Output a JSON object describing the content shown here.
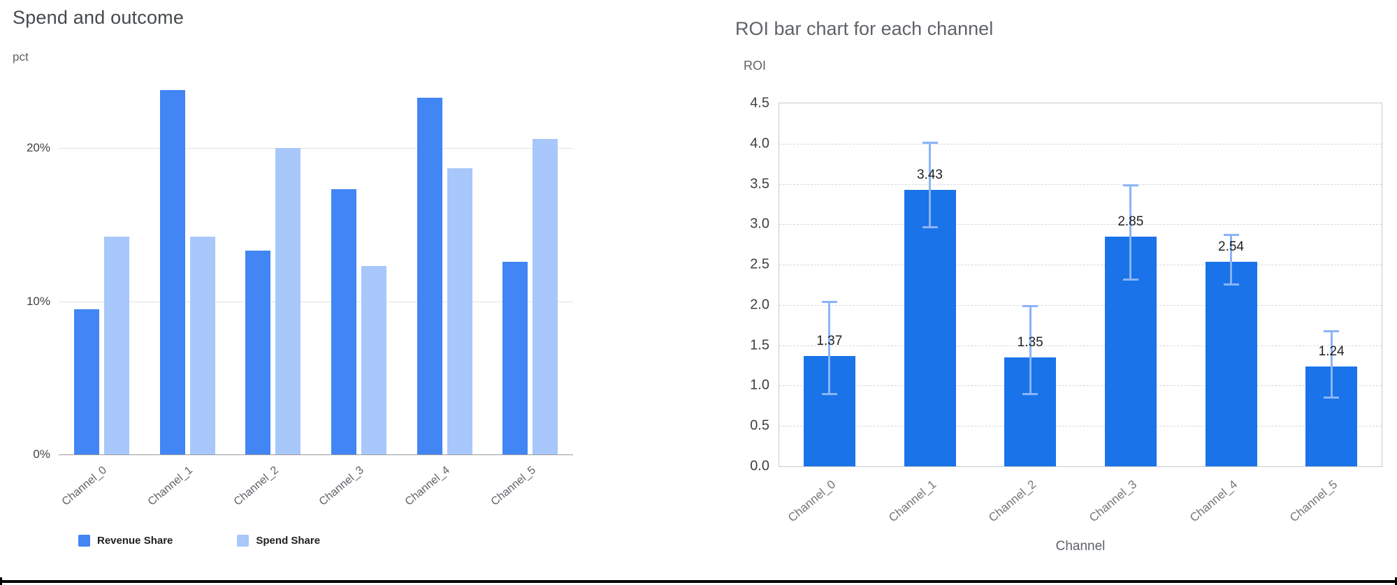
{
  "page": {
    "background": "#ffffff",
    "frame_line_color": "#000000"
  },
  "chart_data": [
    {
      "type": "bar",
      "title": "Spend and outcome",
      "ylabel": "pct",
      "xlabel": "",
      "categories": [
        "Channel_0",
        "Channel_1",
        "Channel_2",
        "Channel_3",
        "Channel_4",
        "Channel_5"
      ],
      "series": [
        {
          "name": "Revenue Share",
          "color": "#4285f4",
          "values": [
            9.5,
            23.8,
            13.3,
            17.3,
            23.3,
            12.6
          ]
        },
        {
          "name": "Spend Share",
          "color": "#a8c7fa",
          "values": [
            14.2,
            14.2,
            20.0,
            12.3,
            18.7,
            20.6
          ]
        }
      ],
      "ylim": [
        0,
        24.2
      ],
      "yticks": [
        {
          "value": 0,
          "label": "0%"
        },
        {
          "value": 10,
          "label": "10%"
        },
        {
          "value": 20,
          "label": "20%"
        }
      ],
      "grid": true,
      "legend_position": "bottom"
    },
    {
      "type": "bar",
      "title": "ROI bar chart for each channel",
      "ylabel": "ROI",
      "xlabel": "Channel",
      "categories": [
        "Channel_0",
        "Channel_1",
        "Channel_2",
        "Channel_3",
        "Channel_4",
        "Channel_5"
      ],
      "values": [
        1.37,
        3.43,
        1.35,
        2.85,
        2.54,
        1.24
      ],
      "value_labels": [
        "1.37",
        "3.43",
        "1.35",
        "2.85",
        "2.54",
        "1.24"
      ],
      "error_low": [
        0.88,
        2.95,
        0.88,
        2.3,
        2.24,
        0.84
      ],
      "error_high": [
        2.05,
        4.02,
        2.0,
        3.5,
        2.88,
        1.69
      ],
      "bar_color": "#1a73e8",
      "error_color": "#8ab4f8",
      "ylim": [
        0,
        4.5
      ],
      "ytick_labels": [
        "0.0",
        "0.5",
        "1.0",
        "1.5",
        "2.0",
        "2.5",
        "3.0",
        "3.5",
        "4.0",
        "4.5"
      ],
      "grid": "dashed-horizontal",
      "legend_position": "none"
    }
  ]
}
